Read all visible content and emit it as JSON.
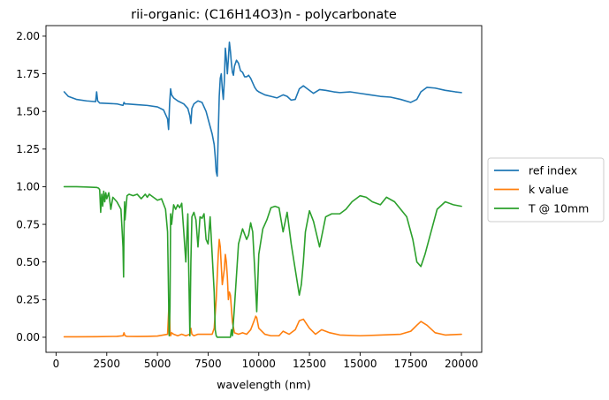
{
  "chart_data": {
    "type": "line",
    "title": "rii-organic: (C16H14O3)n - polycarbonate",
    "xlabel": "wavelength (nm)",
    "ylabel": "",
    "xlim": [
      -500,
      21000
    ],
    "ylim": [
      -0.1,
      2.07
    ],
    "xticks": [
      0,
      2500,
      5000,
      7500,
      10000,
      12500,
      15000,
      17500,
      20000
    ],
    "xtick_labels": [
      "0",
      "2500",
      "5000",
      "7500",
      "10000",
      "12500",
      "15000",
      "17500",
      "20000"
    ],
    "yticks": [
      0.0,
      0.25,
      0.5,
      0.75,
      1.0,
      1.25,
      1.5,
      1.75,
      2.0
    ],
    "ytick_labels": [
      "0.00",
      "0.25",
      "0.50",
      "0.75",
      "1.00",
      "1.25",
      "1.50",
      "1.75",
      "2.00"
    ],
    "grid": false,
    "legend_position": "center-right-outside",
    "series": [
      {
        "name": "ref index",
        "color": "#1f77b4",
        "x": [
          400,
          600,
          1000,
          1500,
          1950,
          2000,
          2050,
          2150,
          3000,
          3300,
          3350,
          3400,
          3500,
          4000,
          4500,
          5000,
          5300,
          5500,
          5550,
          5600,
          5650,
          5700,
          5800,
          6000,
          6300,
          6500,
          6600,
          6650,
          6700,
          6800,
          7000,
          7200,
          7400,
          7600,
          7700,
          7800,
          7850,
          7900,
          7950,
          8000,
          8050,
          8100,
          8150,
          8200,
          8250,
          8300,
          8350,
          8400,
          8450,
          8500,
          8550,
          8600,
          8650,
          8700,
          8750,
          8800,
          8900,
          9000,
          9100,
          9200,
          9300,
          9400,
          9500,
          9600,
          9700,
          9800,
          9900,
          10000,
          10300,
          10600,
          10900,
          11200,
          11400,
          11600,
          11800,
          12000,
          12200,
          12400,
          12700,
          13000,
          13300,
          13700,
          14000,
          14500,
          15000,
          15500,
          16000,
          16500,
          17000,
          17500,
          17800,
          18000,
          18300,
          18700,
          19200,
          19700,
          20000
        ],
        "y": [
          1.63,
          1.6,
          1.58,
          1.57,
          1.565,
          1.63,
          1.57,
          1.556,
          1.55,
          1.54,
          1.56,
          1.55,
          1.55,
          1.545,
          1.54,
          1.53,
          1.51,
          1.45,
          1.38,
          1.55,
          1.65,
          1.61,
          1.59,
          1.57,
          1.55,
          1.52,
          1.47,
          1.42,
          1.52,
          1.55,
          1.57,
          1.56,
          1.5,
          1.4,
          1.35,
          1.28,
          1.2,
          1.1,
          1.07,
          1.35,
          1.6,
          1.72,
          1.75,
          1.65,
          1.58,
          1.7,
          1.92,
          1.85,
          1.75,
          1.85,
          1.96,
          1.9,
          1.82,
          1.76,
          1.74,
          1.8,
          1.84,
          1.82,
          1.77,
          1.76,
          1.73,
          1.73,
          1.74,
          1.72,
          1.69,
          1.66,
          1.64,
          1.63,
          1.61,
          1.6,
          1.59,
          1.61,
          1.6,
          1.575,
          1.58,
          1.65,
          1.67,
          1.65,
          1.62,
          1.645,
          1.64,
          1.63,
          1.625,
          1.63,
          1.62,
          1.61,
          1.6,
          1.595,
          1.58,
          1.56,
          1.58,
          1.63,
          1.66,
          1.655,
          1.64,
          1.63,
          1.625
        ]
      },
      {
        "name": "k value",
        "color": "#ff7f0e",
        "x": [
          400,
          1000,
          2000,
          3000,
          3300,
          3350,
          3400,
          3500,
          4000,
          4500,
          5000,
          5500,
          5580,
          5620,
          5650,
          5700,
          5800,
          6000,
          6200,
          6400,
          6600,
          6650,
          6700,
          6800,
          7000,
          7200,
          7500,
          7700,
          7800,
          7900,
          8000,
          8050,
          8100,
          8200,
          8300,
          8350,
          8400,
          8450,
          8500,
          8550,
          8600,
          8700,
          8800,
          9000,
          9200,
          9400,
          9600,
          9800,
          9850,
          9900,
          10000,
          10300,
          10600,
          11000,
          11200,
          11500,
          11800,
          12000,
          12200,
          12500,
          12800,
          13100,
          13500,
          14000,
          15000,
          16000,
          17000,
          17500,
          17800,
          18000,
          18300,
          18700,
          19200,
          20000
        ],
        "y": [
          0.003,
          0.003,
          0.004,
          0.006,
          0.01,
          0.03,
          0.01,
          0.006,
          0.005,
          0.006,
          0.008,
          0.02,
          0.25,
          0.05,
          0.01,
          0.03,
          0.02,
          0.01,
          0.02,
          0.01,
          0.02,
          0.06,
          0.02,
          0.01,
          0.02,
          0.02,
          0.02,
          0.02,
          0.06,
          0.25,
          0.55,
          0.65,
          0.6,
          0.35,
          0.45,
          0.55,
          0.5,
          0.4,
          0.25,
          0.3,
          0.28,
          0.1,
          0.03,
          0.02,
          0.03,
          0.02,
          0.05,
          0.12,
          0.14,
          0.13,
          0.06,
          0.02,
          0.01,
          0.01,
          0.04,
          0.02,
          0.05,
          0.11,
          0.12,
          0.06,
          0.02,
          0.05,
          0.03,
          0.015,
          0.01,
          0.015,
          0.02,
          0.04,
          0.08,
          0.105,
          0.08,
          0.03,
          0.015,
          0.02
        ]
      },
      {
        "name": "T @ 10mm",
        "color": "#2ca02c",
        "x": [
          400,
          600,
          1000,
          1500,
          2000,
          2100,
          2150,
          2200,
          2250,
          2300,
          2350,
          2400,
          2450,
          2500,
          2600,
          2700,
          2800,
          3000,
          3200,
          3300,
          3330,
          3350,
          3380,
          3400,
          3500,
          3600,
          3800,
          4000,
          4200,
          4400,
          4500,
          4600,
          4800,
          5000,
          5200,
          5400,
          5500,
          5580,
          5620,
          5650,
          5700,
          5800,
          5900,
          6000,
          6100,
          6200,
          6300,
          6400,
          6500,
          6550,
          6600,
          6650,
          6700,
          6800,
          6900,
          7000,
          7100,
          7200,
          7300,
          7400,
          7500,
          7600,
          7700,
          7800,
          7850,
          7900,
          7950,
          8000,
          8100,
          8200,
          8300,
          8400,
          8500,
          8600,
          8650,
          8700,
          8800,
          9000,
          9200,
          9400,
          9500,
          9600,
          9700,
          9800,
          9900,
          10000,
          10200,
          10400,
          10600,
          10800,
          11000,
          11200,
          11400,
          11600,
          11800,
          12000,
          12100,
          12200,
          12300,
          12500,
          12700,
          13000,
          13300,
          13600,
          14000,
          14300,
          14600,
          15000,
          15300,
          15600,
          16000,
          16300,
          16700,
          17000,
          17300,
          17600,
          17800,
          18000,
          18200,
          18500,
          18800,
          19200,
          19600,
          20000
        ],
        "y": [
          1.0,
          1.0,
          1.0,
          0.998,
          0.995,
          0.99,
          0.98,
          0.83,
          0.95,
          0.87,
          0.97,
          0.9,
          0.96,
          0.92,
          0.96,
          0.85,
          0.93,
          0.9,
          0.85,
          0.6,
          0.4,
          0.7,
          0.9,
          0.78,
          0.94,
          0.95,
          0.94,
          0.95,
          0.92,
          0.95,
          0.93,
          0.95,
          0.93,
          0.91,
          0.92,
          0.85,
          0.7,
          0.01,
          0.2,
          0.82,
          0.75,
          0.88,
          0.85,
          0.88,
          0.86,
          0.89,
          0.7,
          0.5,
          0.82,
          0.4,
          0.01,
          0.5,
          0.8,
          0.83,
          0.78,
          0.6,
          0.8,
          0.79,
          0.82,
          0.65,
          0.62,
          0.8,
          0.55,
          0.3,
          0.05,
          0.01,
          0.0,
          0.0,
          0.0,
          0.0,
          0.0,
          0.0,
          0.0,
          0.0,
          0.05,
          0.01,
          0.2,
          0.62,
          0.72,
          0.65,
          0.68,
          0.76,
          0.7,
          0.45,
          0.17,
          0.55,
          0.72,
          0.78,
          0.86,
          0.87,
          0.86,
          0.7,
          0.83,
          0.62,
          0.45,
          0.28,
          0.35,
          0.5,
          0.7,
          0.84,
          0.77,
          0.6,
          0.8,
          0.82,
          0.82,
          0.85,
          0.9,
          0.94,
          0.93,
          0.9,
          0.88,
          0.93,
          0.9,
          0.85,
          0.8,
          0.65,
          0.5,
          0.47,
          0.55,
          0.7,
          0.85,
          0.9,
          0.88,
          0.87
        ]
      }
    ]
  }
}
